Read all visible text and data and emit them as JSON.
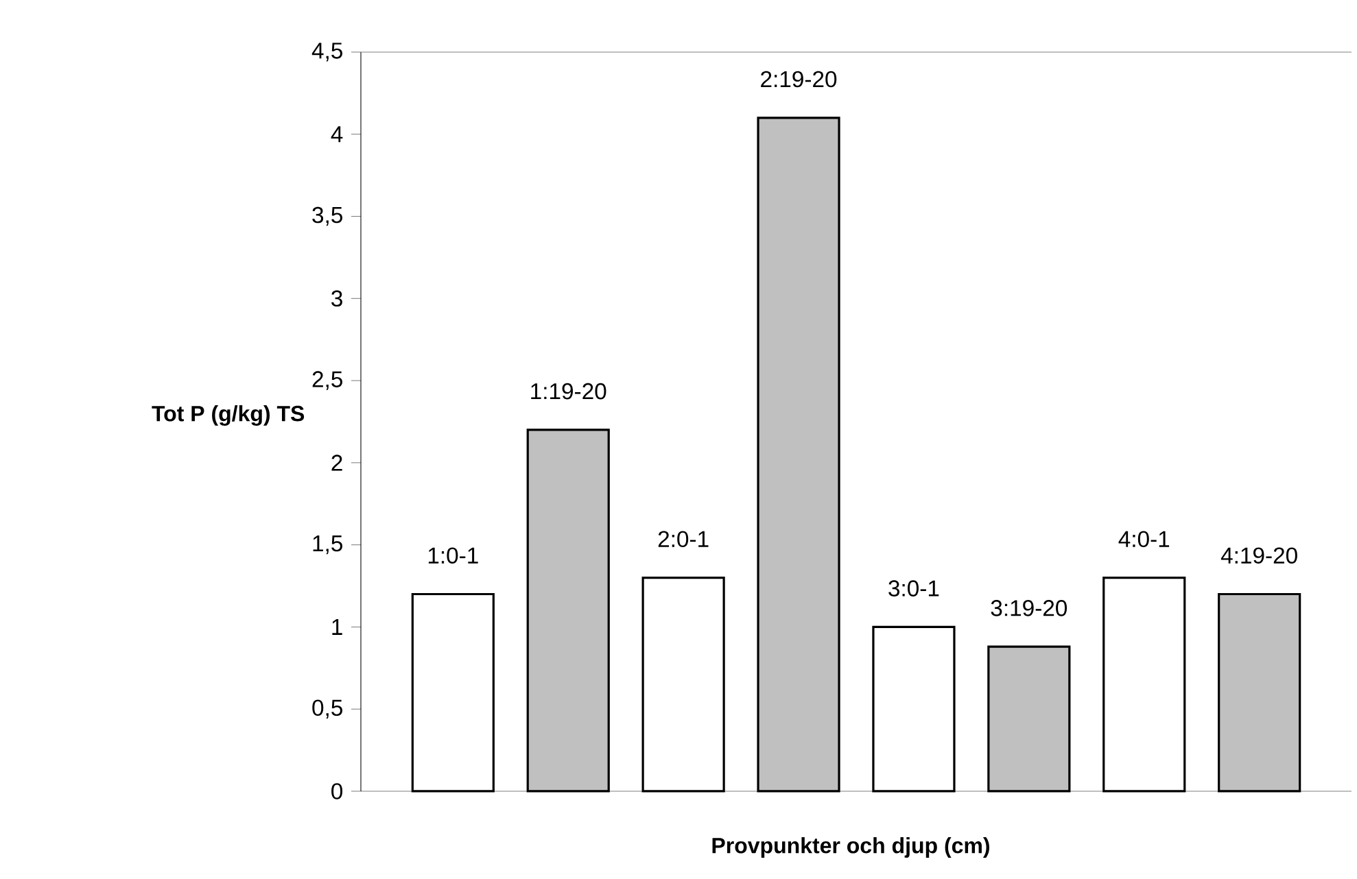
{
  "chart_data": {
    "type": "bar",
    "xlabel": "Provpunkter och djup (cm)",
    "ylabel": "Tot P (g/kg) TS",
    "categories": [
      "1:0-1",
      "1:19-20",
      "2:0-1",
      "2:19-20",
      "3:0-1",
      "3:19-20",
      "4:0-1",
      "4:19-20"
    ],
    "values": [
      1.2,
      2.2,
      1.3,
      4.1,
      1.0,
      0.88,
      1.3,
      1.2
    ],
    "colors": [
      "#ffffff",
      "#c0c0c0",
      "#ffffff",
      "#c0c0c0",
      "#ffffff",
      "#c0c0c0",
      "#ffffff",
      "#c0c0c0"
    ],
    "ylim": [
      0,
      4.5
    ],
    "yticks": [
      {
        "value": 0,
        "label": "0"
      },
      {
        "value": 0.5,
        "label": "0,5"
      },
      {
        "value": 1,
        "label": "1"
      },
      {
        "value": 1.5,
        "label": "1,5"
      },
      {
        "value": 2,
        "label": "2"
      },
      {
        "value": 2.5,
        "label": "2,5"
      },
      {
        "value": 3,
        "label": "3"
      },
      {
        "value": 3.5,
        "label": "3,5"
      },
      {
        "value": 4,
        "label": "4"
      },
      {
        "value": 4.5,
        "label": "4,5"
      }
    ],
    "grid": false
  }
}
